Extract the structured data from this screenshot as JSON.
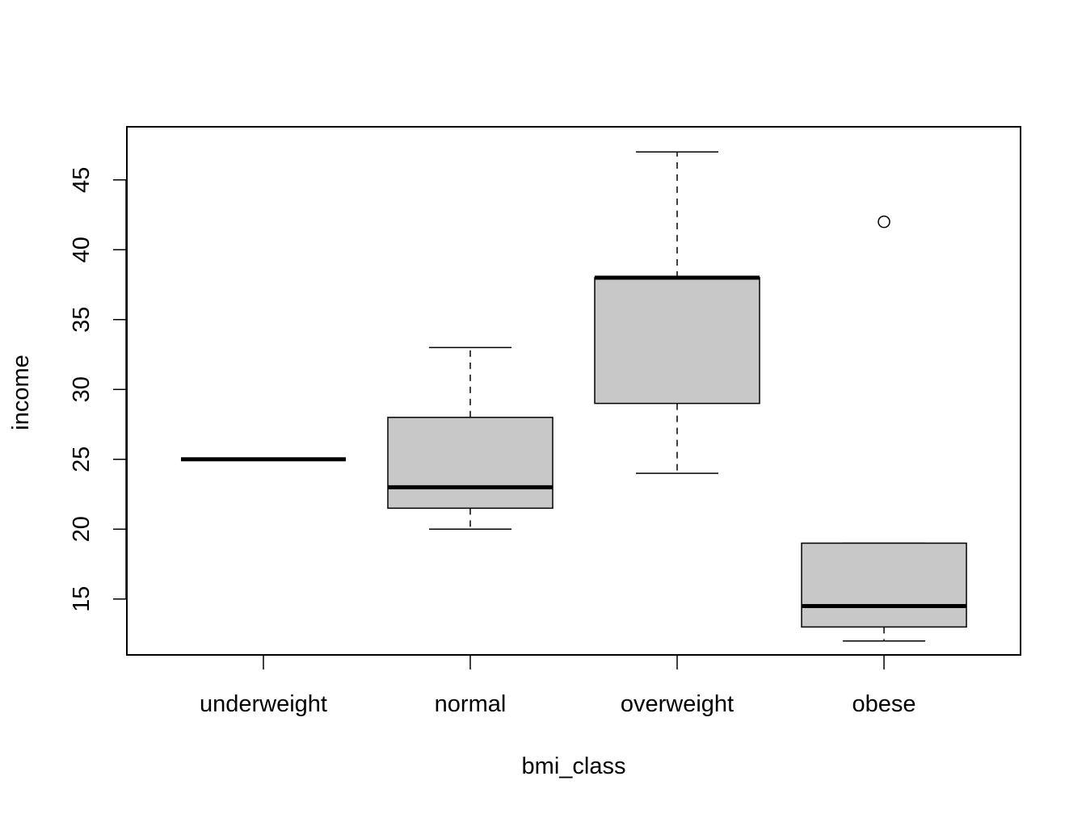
{
  "chart_data": {
    "type": "box",
    "title": "",
    "xlabel": "bmi_class",
    "ylabel": "income",
    "categories": [
      "underweight",
      "normal",
      "overweight",
      "obese"
    ],
    "ylim": [
      11,
      48.8
    ],
    "yticks": [
      15,
      20,
      25,
      30,
      35,
      40,
      45
    ],
    "ytick_labels": [
      "15",
      "20",
      "25",
      "30",
      "35",
      "40",
      "45"
    ],
    "grid": false,
    "box_fill": "#c8c8c8",
    "boxes": [
      {
        "category": "underweight",
        "whisker_low": 25,
        "q1": 25,
        "median": 25,
        "q3": 25,
        "whisker_high": 25,
        "outliers": []
      },
      {
        "category": "normal",
        "whisker_low": 20,
        "q1": 21.5,
        "median": 23,
        "q3": 28,
        "whisker_high": 33,
        "outliers": []
      },
      {
        "category": "overweight",
        "whisker_low": 24,
        "q1": 29,
        "median": 38,
        "q3": 38,
        "whisker_high": 47,
        "outliers": []
      },
      {
        "category": "obese",
        "whisker_low": 12,
        "q1": 13,
        "median": 14.5,
        "q3": 19,
        "whisker_high": 19,
        "outliers": [
          42
        ]
      }
    ]
  }
}
